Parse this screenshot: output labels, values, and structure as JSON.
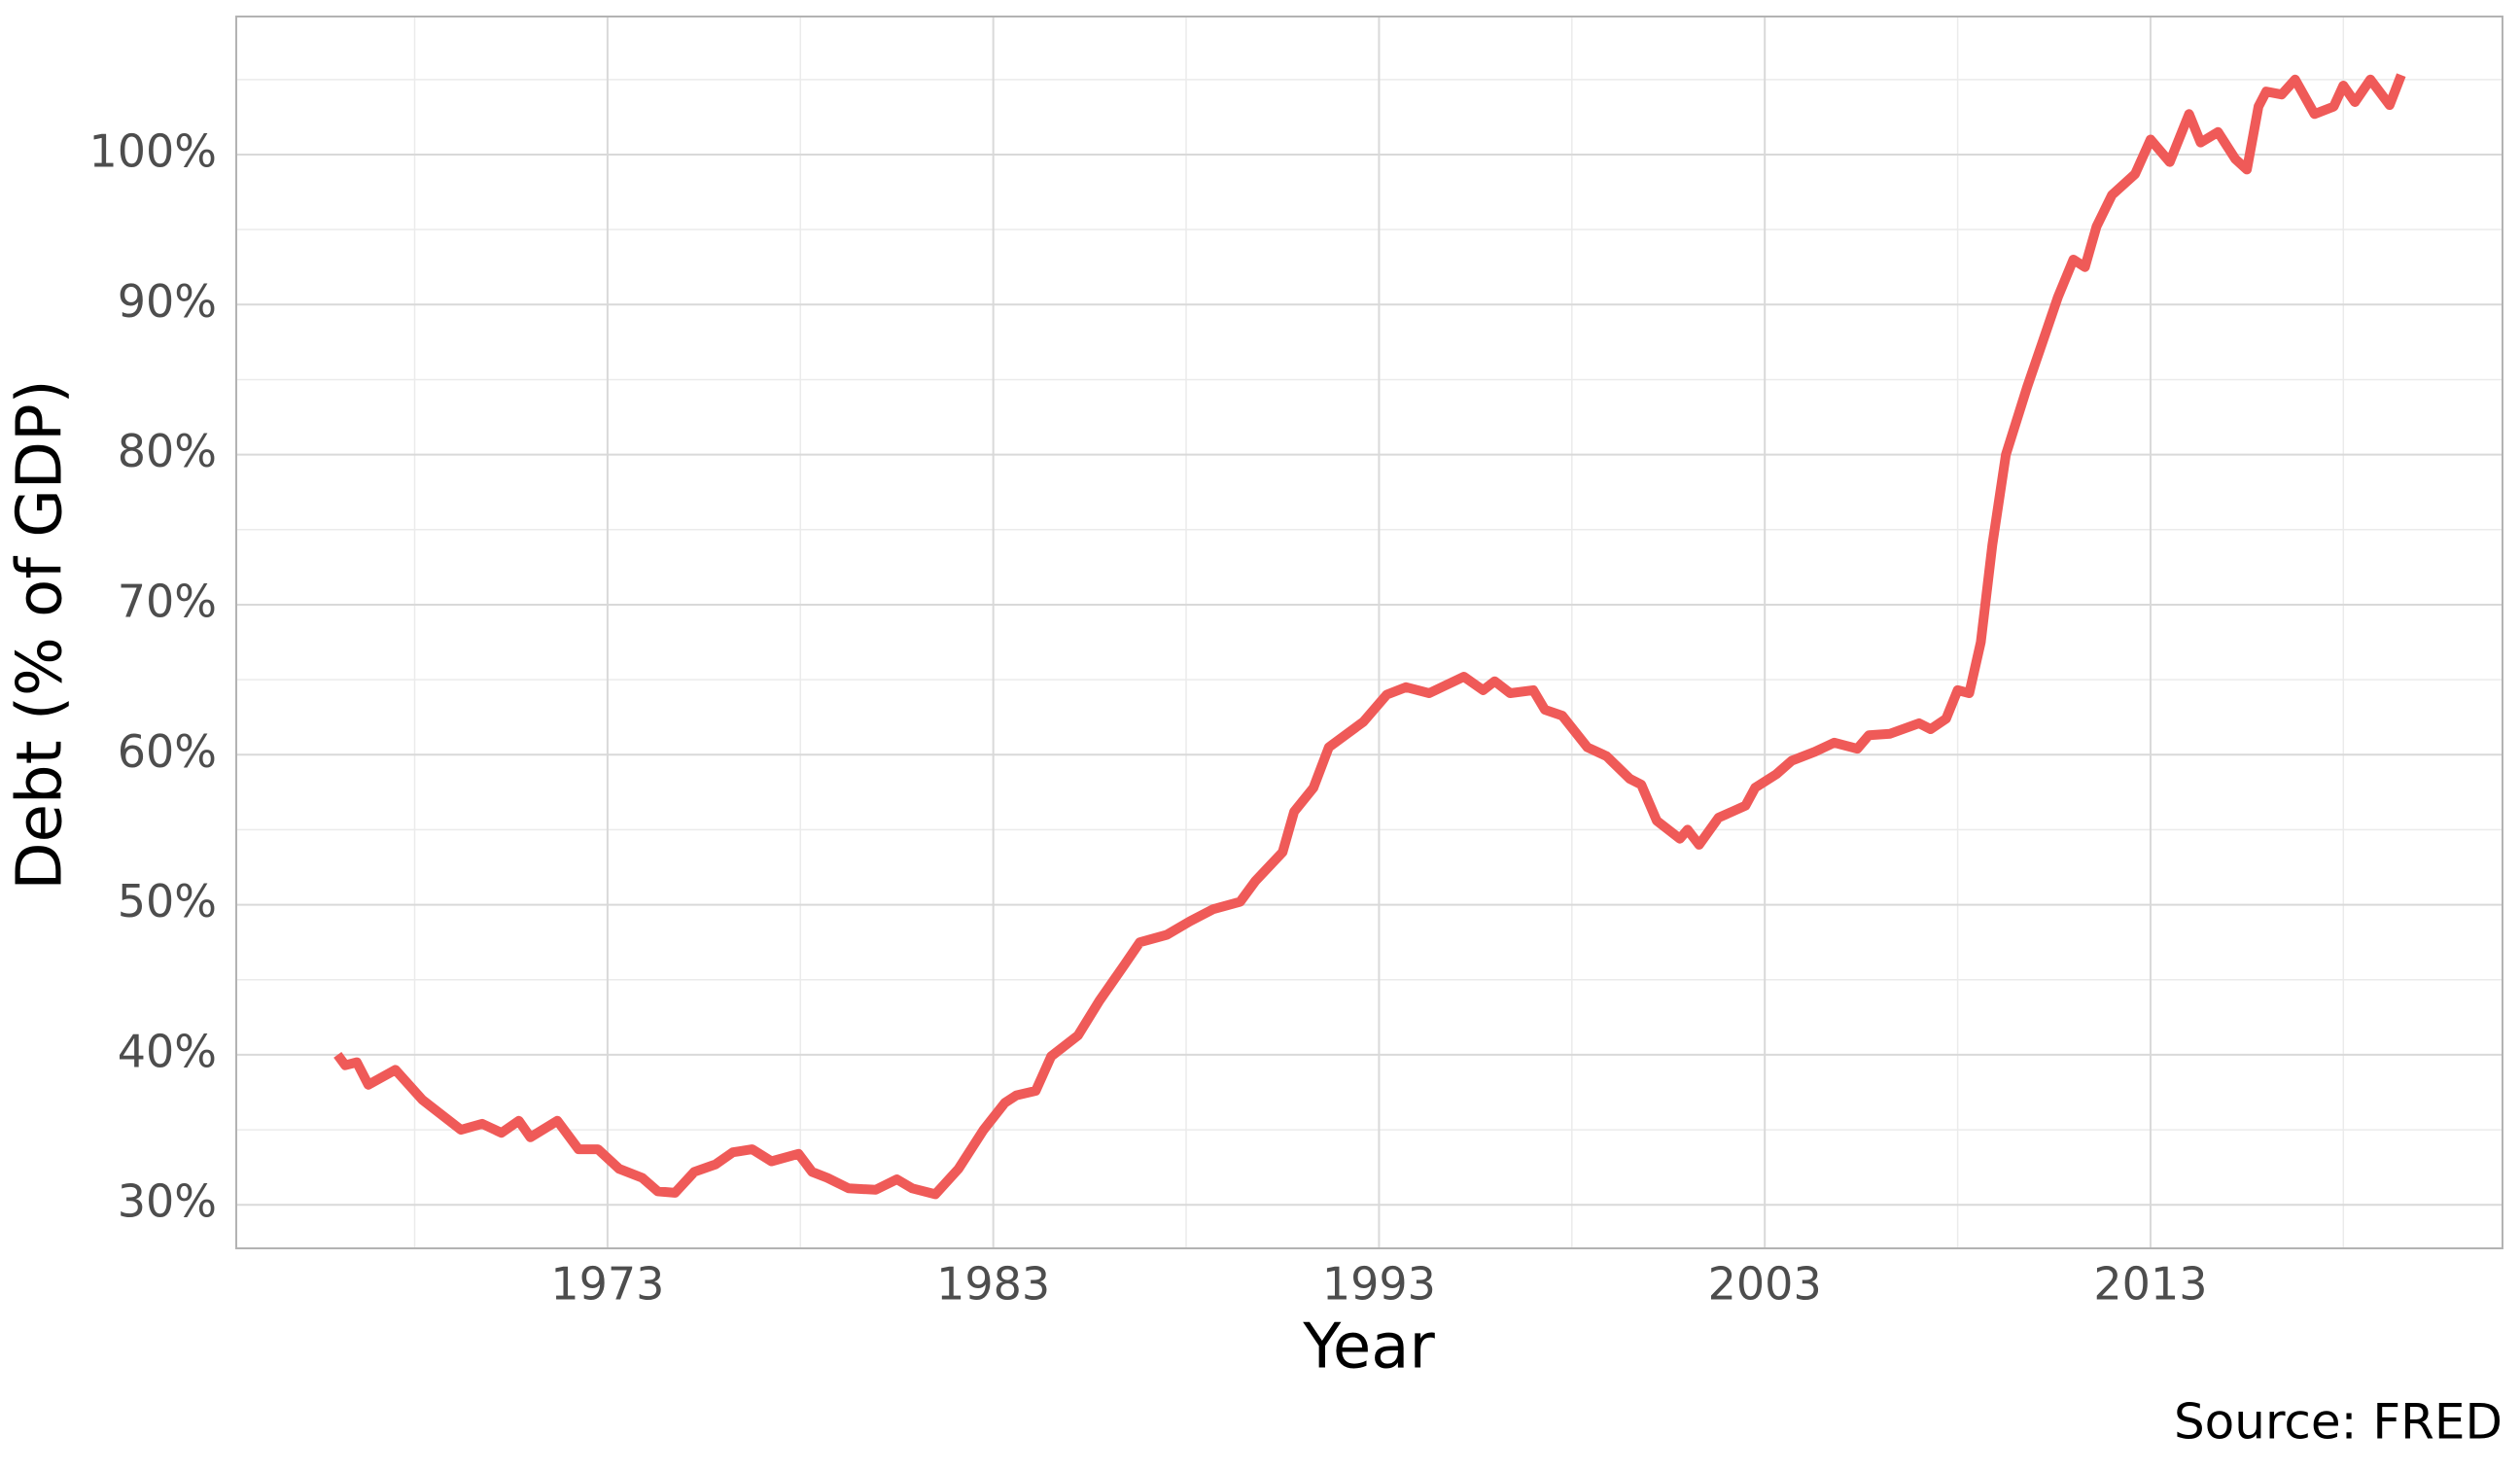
{
  "chart_data": {
    "type": "line",
    "xlabel": "Year",
    "ylabel": "Debt (% of GDP)",
    "caption": "Source: FRED",
    "x": [
      1966.0,
      1966.2,
      1966.5,
      1966.8,
      1967.5,
      1968.2,
      1969.2,
      1969.75,
      1970.25,
      1970.7,
      1971.0,
      1971.7,
      1972.25,
      1972.75,
      1973.3,
      1973.9,
      1974.3,
      1974.75,
      1975.25,
      1975.8,
      1976.25,
      1976.75,
      1977.25,
      1977.95,
      1978.3,
      1978.7,
      1979.25,
      1979.95,
      1980.5,
      1980.9,
      1981.5,
      1982.1,
      1982.75,
      1983.3,
      1983.6,
      1984.1,
      1984.5,
      1985.2,
      1985.75,
      1986.4,
      1986.8,
      1987.5,
      1988.1,
      1988.7,
      1989.4,
      1989.8,
      1990.5,
      1990.8,
      1991.3,
      1991.7,
      1992.6,
      1993.2,
      1993.7,
      1994.3,
      1995.2,
      1995.7,
      1996.0,
      1996.4,
      1997.0,
      1997.3,
      1997.75,
      1998.4,
      1998.9,
      1999.5,
      1999.8,
      2000.2,
      2000.8,
      2001.0,
      2001.3,
      2001.8,
      2002.5,
      2002.75,
      2003.3,
      2003.7,
      2004.3,
      2004.8,
      2005.4,
      2005.7,
      2006.25,
      2007.0,
      2007.3,
      2007.7,
      2008.0,
      2008.3,
      2008.6,
      2008.9,
      2009.25,
      2009.8,
      2010.2,
      2010.6,
      2011.0,
      2011.3,
      2011.6,
      2012.0,
      2012.6,
      2013.0,
      2013.5,
      2014.0,
      2014.3,
      2014.75,
      2015.2,
      2015.5,
      2015.8,
      2016.0,
      2016.4,
      2016.75,
      2017.25,
      2017.75,
      2018.0,
      2018.3,
      2018.7,
      2019.2,
      2019.5
    ],
    "values": [
      40.0,
      39.3,
      39.5,
      38.0,
      39.0,
      37.0,
      35.0,
      35.4,
      34.8,
      35.6,
      34.5,
      35.6,
      33.7,
      33.7,
      32.4,
      31.8,
      30.9,
      30.8,
      32.2,
      32.7,
      33.5,
      33.7,
      32.9,
      33.4,
      32.2,
      31.8,
      31.1,
      31.0,
      31.7,
      31.1,
      30.7,
      32.4,
      35.0,
      36.8,
      37.3,
      37.6,
      39.9,
      41.3,
      43.6,
      46.0,
      47.5,
      48.0,
      48.9,
      49.7,
      50.2,
      51.6,
      53.5,
      56.2,
      57.8,
      60.5,
      62.2,
      64.0,
      64.5,
      64.1,
      65.2,
      64.3,
      64.9,
      64.1,
      64.3,
      63.0,
      62.6,
      60.5,
      59.9,
      58.4,
      58.0,
      55.6,
      54.4,
      55.0,
      54.0,
      55.8,
      56.6,
      57.8,
      58.7,
      59.6,
      60.2,
      60.8,
      60.4,
      61.3,
      61.4,
      62.1,
      61.7,
      62.4,
      64.3,
      64.1,
      67.5,
      74.0,
      80.0,
      84.5,
      87.5,
      90.5,
      93.0,
      92.5,
      95.2,
      97.3,
      98.7,
      101.0,
      99.5,
      102.7,
      100.8,
      101.5,
      99.7,
      99.0,
      103.2,
      104.2,
      104.0,
      105.0,
      102.7,
      103.2,
      104.6,
      103.5,
      105.0,
      103.3,
      105.3
    ],
    "color": "#ef5a58",
    "xlim": [
      1963.375,
      2022.125
    ],
    "xticks": [
      1973,
      1983,
      1993,
      2003,
      2013
    ],
    "ylim": [
      27.1,
      109.2
    ],
    "yticks": [
      {
        "value": 30,
        "label": "30%"
      },
      {
        "value": 40,
        "label": "40%"
      },
      {
        "value": 50,
        "label": "50%"
      },
      {
        "value": 60,
        "label": "60%"
      },
      {
        "value": 70,
        "label": "70%"
      },
      {
        "value": 80,
        "label": "80%"
      },
      {
        "value": 90,
        "label": "90%"
      },
      {
        "value": 100,
        "label": "100%"
      }
    ],
    "grid": true,
    "minor_grid": true
  }
}
